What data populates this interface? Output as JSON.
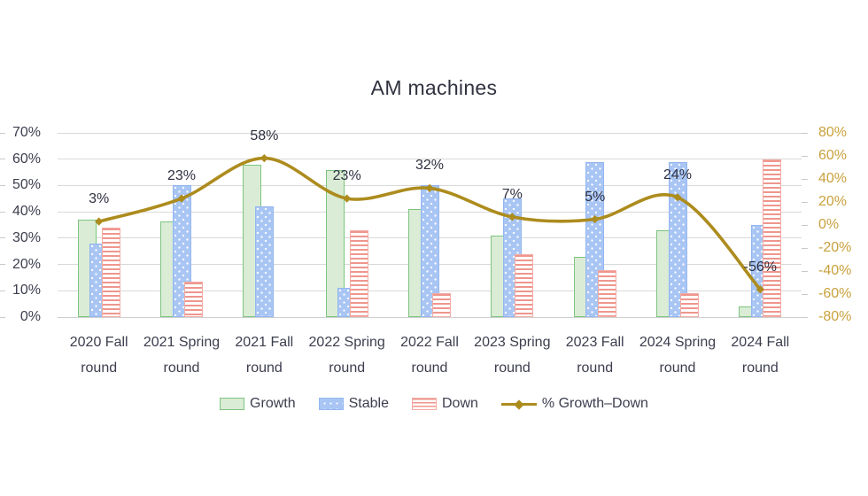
{
  "title": "AM machines",
  "legend": {
    "growth": "Growth",
    "stable": "Stable",
    "down": "Down",
    "line": "% Growth–Down"
  },
  "colors": {
    "growth_fill": "#daecd5",
    "growth_border": "#7cc47e",
    "stable_fill": "#a8c5f4",
    "stable_border": "#94b7f0",
    "down_stripe": "#ef968d",
    "down_border": "#f3aca5",
    "line": "#ad8c1e",
    "right_axis_text": "#c9a13c",
    "axis_text": "#3c3e4e",
    "gridline": "#d9d9d9"
  },
  "chart_data": {
    "type": "bar+line",
    "title": "AM machines",
    "categories": [
      "2020 Fall",
      "2021 Spring",
      "2021 Fall",
      "2022 Spring",
      "2022 Fall",
      "2023 Spring",
      "2023 Fall",
      "2024 Spring",
      "2024 Fall"
    ],
    "category_sublabel": "round",
    "bar_series": [
      {
        "name": "Growth",
        "values": [
          37,
          36.5,
          58,
          56,
          41,
          31,
          23,
          33,
          4
        ]
      },
      {
        "name": "Stable",
        "values": [
          28,
          50,
          42,
          11,
          50,
          45,
          59,
          59,
          35
        ]
      },
      {
        "name": "Down",
        "values": [
          34,
          13.5,
          0,
          33,
          9,
          24,
          18,
          9,
          60
        ]
      }
    ],
    "line_series": {
      "name": "% Growth–Down",
      "axis": "right",
      "values": [
        3,
        23,
        58,
        23,
        32,
        7,
        5,
        24,
        -56
      ],
      "labels": [
        "3%",
        "23%",
        "58%",
        "23%",
        "32%",
        "7%",
        "5%",
        "24%",
        "-56%"
      ]
    },
    "left_axis": {
      "min": 0,
      "max": 70,
      "step": 10,
      "tick_labels": [
        "0%",
        "10%",
        "20%",
        "30%",
        "40%",
        "50%",
        "60%",
        "70%"
      ]
    },
    "right_axis": {
      "min": -80,
      "max": 80,
      "step": 20,
      "tick_labels": [
        "-80%",
        "-60%",
        "-40%",
        "-20%",
        "0%",
        "20%",
        "40%",
        "60%",
        "80%"
      ]
    },
    "grid": "horizontal",
    "legend_position": "bottom"
  }
}
